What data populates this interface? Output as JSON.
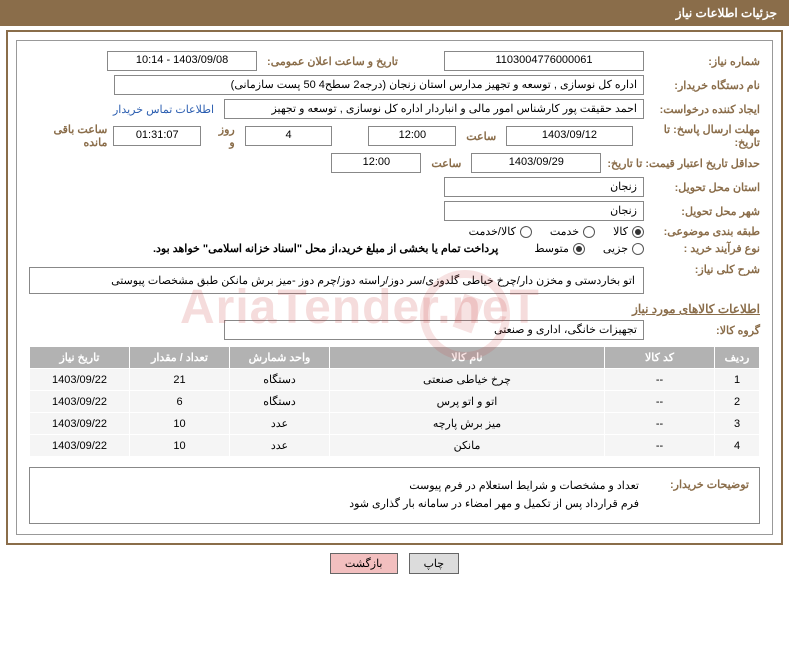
{
  "header_title": "جزئیات اطلاعات نیاز",
  "labels": {
    "need_no": "شماره نیاز:",
    "announce_dt": "تاریخ و ساعت اعلان عمومی:",
    "buyer_org": "نام دستگاه خریدار:",
    "requester": "ایجاد کننده درخواست:",
    "contact_link": "اطلاعات تماس خریدار",
    "deadline": "مهلت ارسال پاسخ: تا تاریخ:",
    "hour": "ساعت",
    "days_and": "روز و",
    "remain": "ساعت باقی مانده",
    "validity": "حداقل تاریخ اعتبار قیمت: تا تاریخ:",
    "delivery_prov": "استان محل تحویل:",
    "delivery_city": "شهر محل تحویل:",
    "category": "طبقه بندی موضوعی:",
    "buy_type": "نوع فرآیند خرید :",
    "note": "پرداخت تمام یا بخشی از مبلغ خرید،از محل \"اسناد خزانه اسلامی\" خواهد بود.",
    "overview": "شرح کلی نیاز:",
    "goods_info": "اطلاعات کالاهای مورد نیاز",
    "goods_group": "گروه کالا:",
    "buyer_note": "توضیحات خریدار:",
    "btn_print": "چاپ",
    "btn_back": "بازگشت"
  },
  "fields": {
    "need_no": "1103004776000061",
    "announce_dt": "1403/09/08 - 10:14",
    "buyer_org": "اداره کل نوسازی ,  توسعه و تجهیز مدارس استان زنجان (درجه2  سطح4  50 پست سازمانی)",
    "requester": "احمد حقیقت پور کارشناس امور مالی و انباردار اداره کل نوسازی ,  توسعه و تجهیز",
    "deadline_date": "1403/09/12",
    "deadline_time": "12:00",
    "remain_days": "4",
    "remain_time": "01:31:07",
    "validity_date": "1403/09/29",
    "validity_time": "12:00",
    "province": "زنجان",
    "city": "زنجان",
    "goods_group": "تجهیزات خانگی، اداری و صنعتی",
    "overview_text": "اتو بخاردستی و مخزن دار/چرخ خیاطی گلدوزی/سر دوز/راسته دوز/چرم دوز -میز برش مانکن طبق مشخصات پیوستی",
    "buyer_note_text": "تعداد و مشخصات و شرایط استعلام در فرم پیوست\nفرم قرارداد پس از تکمیل و مهر امضاء در سامانه بار گذاری شود"
  },
  "radios": {
    "category": [
      {
        "label": "کالا",
        "checked": true
      },
      {
        "label": "خدمت",
        "checked": false
      },
      {
        "label": "کالا/خدمت",
        "checked": false
      }
    ],
    "buy_type": [
      {
        "label": "جزیی",
        "checked": false
      },
      {
        "label": "متوسط",
        "checked": true
      }
    ]
  },
  "table": {
    "columns": [
      "ردیف",
      "کد کالا",
      "نام کالا",
      "واحد شمارش",
      "تعداد / مقدار",
      "تاریخ نیاز"
    ],
    "col_widths": [
      "45px",
      "110px",
      "auto",
      "100px",
      "100px",
      "100px"
    ],
    "header_bg": "#b2b2b2",
    "header_color": "#ffffff",
    "row_bg": "#f5f5f5",
    "rows": [
      [
        "1",
        "--",
        "چرخ خیاطی صنعتی",
        "دستگاه",
        "21",
        "1403/09/22"
      ],
      [
        "2",
        "--",
        "اتو و اتو پرس",
        "دستگاه",
        "6",
        "1403/09/22"
      ],
      [
        "3",
        "--",
        "میز برش پارچه",
        "عدد",
        "10",
        "1403/09/22"
      ],
      [
        "4",
        "--",
        "مانکن",
        "عدد",
        "10",
        "1403/09/22"
      ]
    ]
  },
  "colors": {
    "brand": "#8a6d4a",
    "link": "#2a5db0",
    "btn_back_bg": "#f2bfbf",
    "btn_print_bg": "#dcdcdc"
  },
  "watermark": "AriaTender.neT"
}
